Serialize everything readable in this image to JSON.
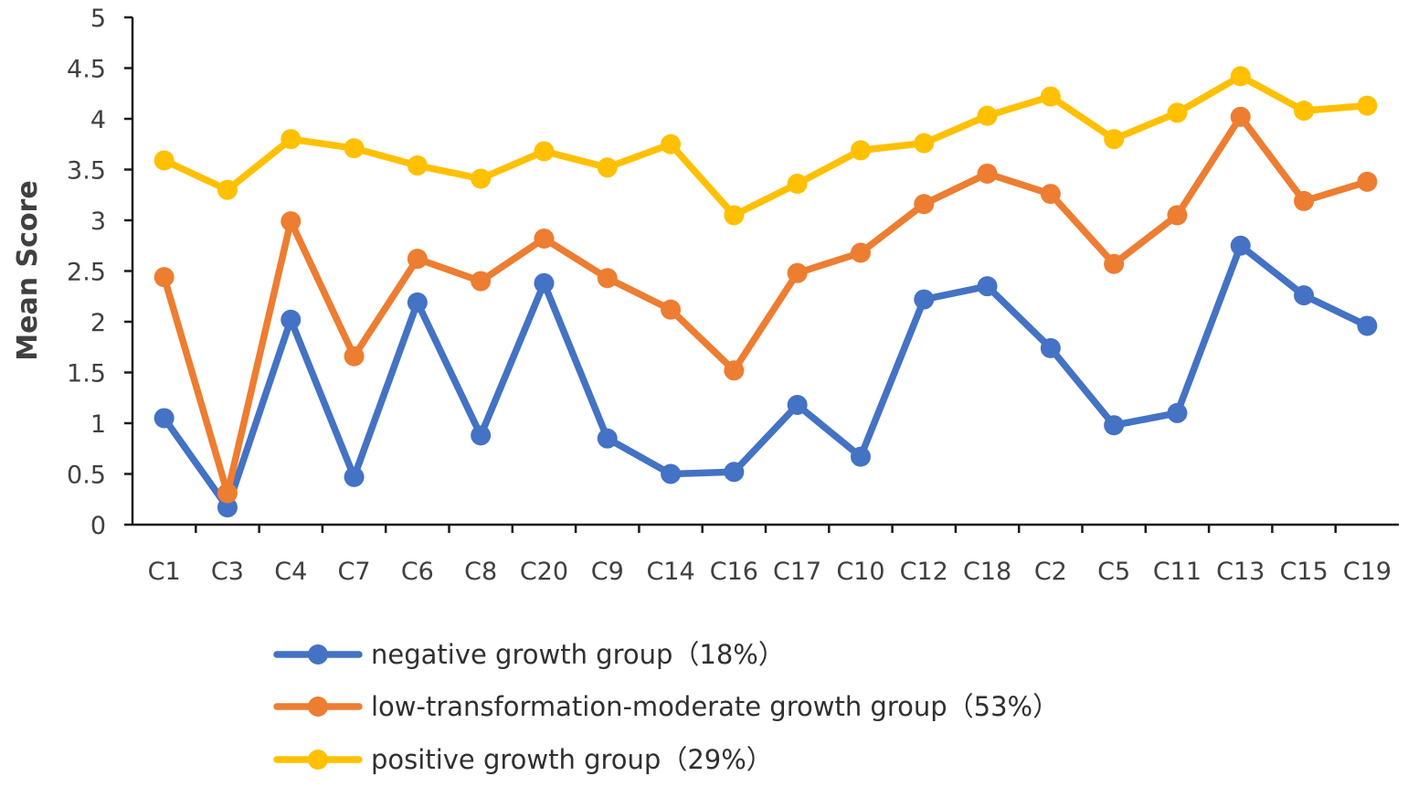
{
  "chart_data": {
    "type": "line",
    "title": "",
    "xlabel": "",
    "ylabel": "Mean Score",
    "ylim": [
      0,
      5
    ],
    "yticks": [
      "0",
      "0.5",
      "1",
      "1.5",
      "2",
      "2.5",
      "3",
      "3.5",
      "4",
      "4.5",
      "5"
    ],
    "grid": false,
    "legend_position": "bottom",
    "categories": [
      "C1",
      "C3",
      "C4",
      "C7",
      "C6",
      "C8",
      "C20",
      "C9",
      "C14",
      "C16",
      "C17",
      "C10",
      "C12",
      "C18",
      "C2",
      "C5",
      "C11",
      "C13",
      "C15",
      "C19"
    ],
    "series": [
      {
        "name": "negative growth group（18%）",
        "color": "#4472C4",
        "values": [
          1.05,
          0.17,
          2.02,
          0.47,
          2.19,
          0.88,
          2.38,
          0.85,
          0.5,
          0.52,
          1.18,
          0.67,
          2.22,
          2.35,
          1.74,
          0.98,
          1.1,
          2.75,
          2.26,
          1.96
        ]
      },
      {
        "name": "low-transformation-moderate growth group（53%）",
        "color": "#ED7D31",
        "values": [
          2.44,
          0.31,
          2.99,
          1.66,
          2.62,
          2.4,
          2.82,
          2.43,
          2.12,
          1.52,
          2.48,
          2.68,
          3.16,
          3.46,
          3.26,
          2.57,
          3.05,
          4.02,
          3.19,
          3.38
        ]
      },
      {
        "name": "positive growth group（29%）",
        "color": "#FFC000",
        "values": [
          3.59,
          3.3,
          3.8,
          3.71,
          3.54,
          3.41,
          3.68,
          3.52,
          3.75,
          3.05,
          3.36,
          3.69,
          3.76,
          4.03,
          4.22,
          3.8,
          4.06,
          4.42,
          4.08,
          4.13
        ]
      }
    ]
  }
}
